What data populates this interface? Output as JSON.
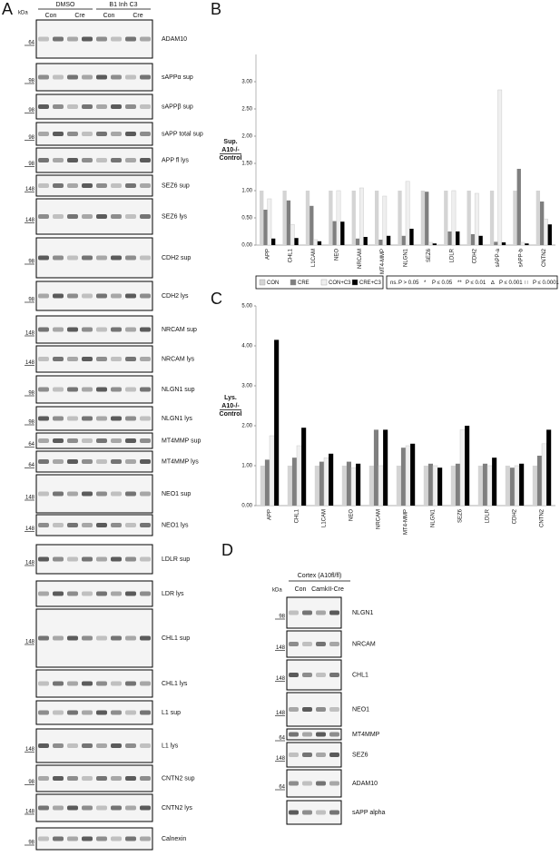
{
  "panel_labels": [
    "A",
    "B",
    "C",
    "D"
  ],
  "panel_a": {
    "kda": "kDa",
    "groups": [
      "DMSO",
      "B1 Inh C3"
    ],
    "lanes": [
      "Con",
      "Cre",
      "Con",
      "Cre"
    ],
    "rows": [
      {
        "marker": "64",
        "label": "ADAM10"
      },
      {
        "marker": "98",
        "label": "sAPPα sup"
      },
      {
        "marker": "98",
        "label": "sAPPβ sup"
      },
      {
        "marker": "98",
        "label": "sAPP total sup"
      },
      {
        "marker": "98",
        "label": "APP fl lys"
      },
      {
        "marker": "148",
        "label": "SEZ6 sup"
      },
      {
        "marker": "148",
        "label": "SEZ6 lys"
      },
      {
        "marker": "98",
        "label": "CDH2 sup"
      },
      {
        "marker": "98",
        "label": "CDH2 lys"
      },
      {
        "marker": "148",
        "label": "NRCAM sup"
      },
      {
        "marker": "148",
        "label": "NRCAM lys"
      },
      {
        "marker": "98",
        "label": "NLGN1 sup"
      },
      {
        "marker": "98",
        "label": "NLGN1 lys"
      },
      {
        "marker": "64",
        "label": "MT4MMP sup"
      },
      {
        "marker": "64",
        "label": "MT4MMP lys"
      },
      {
        "marker": "148",
        "label": "NEO1 sup"
      },
      {
        "marker": "148",
        "label": "NEO1 lys"
      },
      {
        "marker": "148",
        "label": "LDLR sup"
      },
      {
        "marker": null,
        "label": "LDR lys"
      },
      {
        "marker": "148",
        "label": "CHL1 sup"
      },
      {
        "marker": null,
        "label": "CHL1 lys"
      },
      {
        "marker": null,
        "label": "L1 sup"
      },
      {
        "marker": "148",
        "label": "L1 lys"
      },
      {
        "marker": "98",
        "label": "CNTN2 sup"
      },
      {
        "marker": "148",
        "label": "CNTN2 lys"
      },
      {
        "marker": "98",
        "label": "Calnexin"
      }
    ]
  },
  "chart_data": [
    {
      "type": "bar",
      "y_label": [
        "Sup.",
        "A10-/-",
        "Control"
      ],
      "categories": [
        "APP",
        "CHL1",
        "L1CAM",
        "NEO",
        "NRCAM",
        "MT4-MMP",
        "NLGN1",
        "SEZ6",
        "LDLR",
        "CDH2",
        "sAPP-a",
        "sAPP-b",
        "CNTN2"
      ],
      "series": [
        {
          "name": "CON",
          "color": "#d4d4d4",
          "values": [
            1.0,
            1.0,
            1.0,
            1.0,
            1.0,
            1.0,
            1.0,
            1.0,
            1.0,
            1.0,
            1.0,
            1.0,
            1.0
          ]
        },
        {
          "name": "CRE",
          "color": "#7f7f7f",
          "values": [
            0.65,
            0.82,
            0.72,
            0.44,
            0.12,
            0.1,
            0.17,
            0.98,
            0.25,
            0.2,
            0.06,
            1.4,
            0.8
          ]
        },
        {
          "name": "CON+C3",
          "color": "#efefef",
          "values": [
            0.85,
            0.38,
            0.1,
            1.0,
            1.05,
            0.9,
            1.17,
            0.05,
            1.0,
            0.95,
            2.85,
            0.05,
            0.48
          ]
        },
        {
          "name": "CRE+C3",
          "color": "#000000",
          "values": [
            0.12,
            0.13,
            0.07,
            0.43,
            0.15,
            0.17,
            0.3,
            0.03,
            0.25,
            0.17,
            0.05,
            0.03,
            0.38
          ]
        }
      ],
      "ylim": [
        0,
        3.5
      ],
      "yticks": [
        {
          "value": 0,
          "label": "0.00"
        },
        {
          "value": 0.5,
          "label": "0.50"
        },
        {
          "value": 1,
          "label": "1.00"
        },
        {
          "value": 1.5,
          "label": "1.50"
        },
        {
          "value": 2,
          "label": "2.00"
        },
        {
          "value": 2.5,
          "label": "2.50"
        },
        {
          "value": 3,
          "label": "3.00"
        }
      ]
    },
    {
      "type": "bar",
      "y_label": [
        "Lys.",
        "A10-/-",
        "Control"
      ],
      "categories": [
        "APP",
        "CHL1",
        "L1CAM",
        "NEO",
        "NRCAM",
        "MT4-MMP",
        "NLGN1",
        "SEZ6",
        "LDLR",
        "CDH2",
        "CNTN2"
      ],
      "series": [
        {
          "color": "#d4d4d4",
          "values": [
            1.0,
            1.0,
            1.0,
            1.0,
            1.0,
            1.0,
            1.0,
            1.0,
            1.0,
            1.0,
            1.0
          ]
        },
        {
          "color": "#7f7f7f",
          "values": [
            1.15,
            1.2,
            1.1,
            1.1,
            1.9,
            1.45,
            1.05,
            1.05,
            1.05,
            0.95,
            1.25
          ]
        },
        {
          "color": "#efefef",
          "values": [
            1.75,
            1.5,
            1.2,
            0.95,
            1.0,
            1.5,
            1.0,
            1.9,
            1.0,
            1.0,
            1.55
          ]
        },
        {
          "color": "#000000",
          "values": [
            4.15,
            1.95,
            1.3,
            1.05,
            1.9,
            1.55,
            0.95,
            2.0,
            1.2,
            1.05,
            1.9
          ]
        }
      ],
      "ylim": [
        0,
        5
      ],
      "yticks": [
        {
          "value": 0,
          "label": "0.00"
        },
        {
          "value": 1,
          "label": "1.00"
        },
        {
          "value": 2,
          "label": "2.00"
        },
        {
          "value": 3,
          "label": "3.00"
        },
        {
          "value": 4,
          "label": "4.00"
        },
        {
          "value": 5,
          "label": "5.00"
        }
      ]
    }
  ],
  "significance_legend": [
    {
      "symbol": "ns.",
      "text": "P > 0.05"
    },
    {
      "symbol": "*",
      "text": "P ≤ 0.05"
    },
    {
      "symbol": "**",
      "text": "P ≤ 0.01"
    },
    {
      "symbol": "∆",
      "text": "P ≤ 0.001"
    },
    {
      "symbol": "∷",
      "text": "P ≤ 0.0001"
    }
  ],
  "panel_d": {
    "title": "Cortex (A10fl/fl)",
    "kda": "kDa",
    "lanes": [
      "Con",
      "CamkII-Cre"
    ],
    "rows": [
      {
        "marker": "98",
        "label": "NLGN1"
      },
      {
        "marker": "148",
        "label": "NRCAM"
      },
      {
        "marker": "148",
        "label": "CHL1"
      },
      {
        "marker": "148",
        "label": "NEO1"
      },
      {
        "marker": "64",
        "label": "MT4MMP"
      },
      {
        "marker": "148",
        "label": "SEZ6"
      },
      {
        "marker": "64",
        "label": "ADAM10"
      },
      {
        "marker": null,
        "label": "sAPP alpha"
      }
    ]
  }
}
